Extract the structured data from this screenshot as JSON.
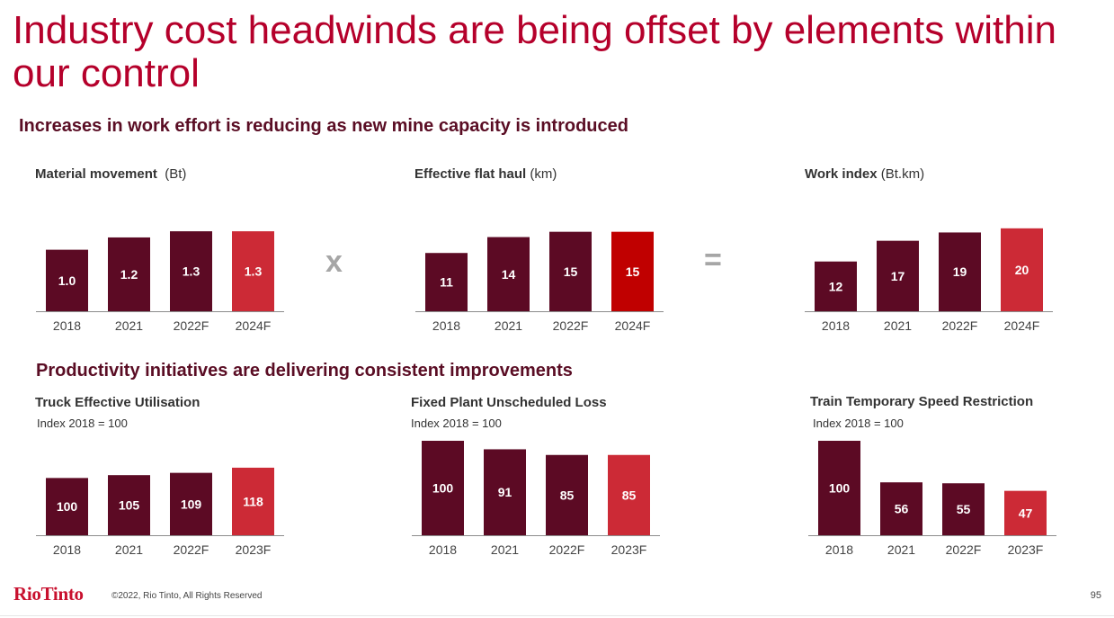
{
  "title": "Industry cost headwinds are being offset by elements within our control",
  "section1_heading": "Increases in work effort is reducing as new mine capacity is introduced",
  "section2_heading": "Productivity initiatives are delivering consistent improvements",
  "operators": {
    "multiply": "x",
    "equals": "="
  },
  "footer": {
    "logo_text": "RioTinto",
    "copyright": "©2022, Rio Tinto, All Rights Reserved",
    "page_number": "95"
  },
  "colors": {
    "dark_bar": "#5c0a24",
    "highlight_bar": "#cc2a36",
    "highlight_bar_alt": "#c00000",
    "title": "#b5002b"
  },
  "chart_data": [
    {
      "id": "material-movement",
      "type": "bar",
      "title": "Material movement",
      "unit": "(Bt)",
      "categories": [
        "2018",
        "2021",
        "2022F",
        "2024F"
      ],
      "values": [
        1.0,
        1.2,
        1.3,
        1.3
      ],
      "labels": [
        "1.0",
        "1.2",
        "1.3",
        "1.3"
      ],
      "highlight": [
        false,
        false,
        false,
        true
      ],
      "ylim": [
        0,
        1.55
      ]
    },
    {
      "id": "effective-flat-haul",
      "type": "bar",
      "title": "Effective flat haul",
      "unit": "(km)",
      "categories": [
        "2018",
        "2021",
        "2022F",
        "2024F"
      ],
      "values": [
        11,
        14,
        15,
        15
      ],
      "labels": [
        "11",
        "14",
        "15",
        "15"
      ],
      "highlight": [
        false,
        false,
        false,
        true
      ],
      "ylim": [
        0,
        18
      ]
    },
    {
      "id": "work-index",
      "type": "bar",
      "title": "Work index",
      "unit": "(Bt.km)",
      "categories": [
        "2018",
        "2021",
        "2022F",
        "2024F"
      ],
      "values": [
        12,
        17,
        19,
        20
      ],
      "labels": [
        "12",
        "17",
        "19",
        "20"
      ],
      "highlight": [
        false,
        false,
        false,
        true
      ],
      "ylim": [
        0,
        23
      ]
    },
    {
      "id": "truck-effective-utilisation",
      "type": "bar",
      "title": "Truck Effective Utilisation",
      "subtitle": "Index 2018 = 100",
      "categories": [
        "2018",
        "2021",
        "2022F",
        "2023F"
      ],
      "values": [
        100,
        105,
        109,
        118
      ],
      "labels": [
        "100",
        "105",
        "109",
        "118"
      ],
      "highlight": [
        false,
        false,
        false,
        true
      ],
      "ylim": [
        0,
        165
      ]
    },
    {
      "id": "fixed-plant-unscheduled-loss",
      "type": "bar",
      "title": "Fixed Plant Unscheduled Loss",
      "subtitle": "Index 2018 = 100",
      "categories": [
        "2018",
        "2021",
        "2022F",
        "2023F"
      ],
      "values": [
        100,
        91,
        85,
        85
      ],
      "labels": [
        "100",
        "91",
        "85",
        "85"
      ],
      "highlight": [
        false,
        false,
        false,
        true
      ],
      "ylim": [
        0,
        100
      ]
    },
    {
      "id": "train-temporary-speed-restriction",
      "type": "bar",
      "title": "Train Temporary Speed Restriction",
      "subtitle": "Index 2018 = 100",
      "categories": [
        "2018",
        "2021",
        "2022F",
        "2023F"
      ],
      "values": [
        100,
        56,
        55,
        47
      ],
      "labels": [
        "100",
        "56",
        "55",
        "47"
      ],
      "highlight": [
        false,
        false,
        false,
        true
      ],
      "ylim": [
        0,
        100
      ]
    }
  ]
}
